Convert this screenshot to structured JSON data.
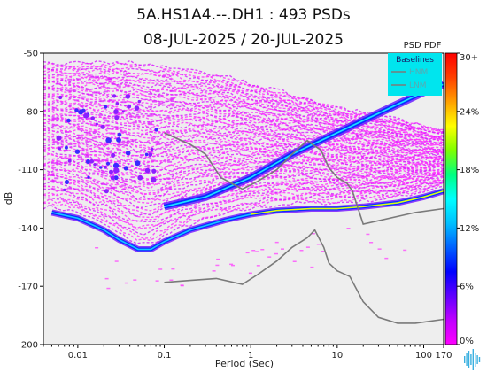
{
  "chart_data": {
    "type": "heatmap",
    "title": "5A.HS1A4.--.DH1 : 493 PSDs",
    "subtitle": "08-JUL-2025 / 20-JUL-2025",
    "xlabel": "Period (Sec)",
    "ylabel": "dB",
    "x_scale": "log",
    "xlim": [
      0.004,
      170
    ],
    "ylim": [
      -200,
      -50
    ],
    "x_ticks": [
      0.01,
      0.1,
      1,
      10,
      100,
      170
    ],
    "x_tick_labels": [
      "0.01",
      "0.1",
      "1",
      "10",
      "100",
      "170"
    ],
    "y_ticks": [
      -50,
      -80,
      -110,
      -140,
      -170,
      -200
    ],
    "y_tick_labels": [
      "-50",
      "-80",
      "-110",
      "-140",
      "-170",
      "-200"
    ],
    "background_color": "#eeeeee",
    "grid": false,
    "colorbar": {
      "title": "PSD PDF",
      "tick_labels": [
        "30+",
        "24%",
        "18%",
        "12%",
        "6%",
        "0%"
      ],
      "colors": [
        "#ff00ff",
        "#c000ff",
        "#6000ff",
        "#0000ff",
        "#0060ff",
        "#00c0ff",
        "#00ffff",
        "#00ff80",
        "#80ff00",
        "#ffff00",
        "#ffa000",
        "#ff4000",
        "#ff0000"
      ]
    },
    "legend": {
      "title": "Baselines",
      "position": "top-right",
      "entries": [
        "HNM",
        "LNM"
      ],
      "background": "#00e5ee"
    },
    "series": [
      {
        "name": "HNM",
        "style": "gray-line",
        "x": [
          0.1,
          0.2,
          0.3,
          0.45,
          0.8,
          1.2,
          2.0,
          3.0,
          4.5,
          6.5,
          8,
          10,
          13,
          15,
          20,
          80,
          170
        ],
        "y": [
          -91,
          -97,
          -102,
          -114,
          -120,
          -116,
          -110,
          -102,
          -95,
          -100,
          -109,
          -114,
          -117,
          -121,
          -138,
          -132,
          -130
        ]
      },
      {
        "name": "LNM",
        "style": "gray-line",
        "x": [
          0.1,
          0.2,
          0.4,
          0.8,
          1.2,
          2,
          3,
          4.5,
          5.5,
          7,
          8,
          10,
          14,
          20,
          30,
          50,
          80,
          170
        ],
        "y": [
          -168,
          -167,
          -166,
          -169,
          -164,
          -157,
          -150,
          -145,
          -141,
          -150,
          -158,
          -162,
          -165,
          -178,
          -186,
          -189,
          -189,
          -187
        ]
      },
      {
        "name": "",
        "style": "pdf-mode",
        "x": [
          0.005,
          0.01,
          0.02,
          0.03,
          0.05,
          0.07,
          0.1,
          0.2,
          0.5,
          1,
          2,
          5,
          10,
          20,
          50,
          100,
          170
        ],
        "y": [
          -132,
          -135,
          -141,
          -146,
          -151,
          -151,
          -147,
          -141,
          -136,
          -133,
          -131,
          -130,
          -130,
          -129,
          -127,
          -124,
          -121
        ]
      },
      {
        "name": "",
        "style": "pdf-line",
        "x": [
          0.1,
          0.3,
          1,
          3,
          10,
          30,
          100,
          170
        ],
        "y": [
          -129,
          -124,
          -114,
          -102,
          -91,
          -81,
          -70,
          -66
        ]
      }
    ]
  }
}
